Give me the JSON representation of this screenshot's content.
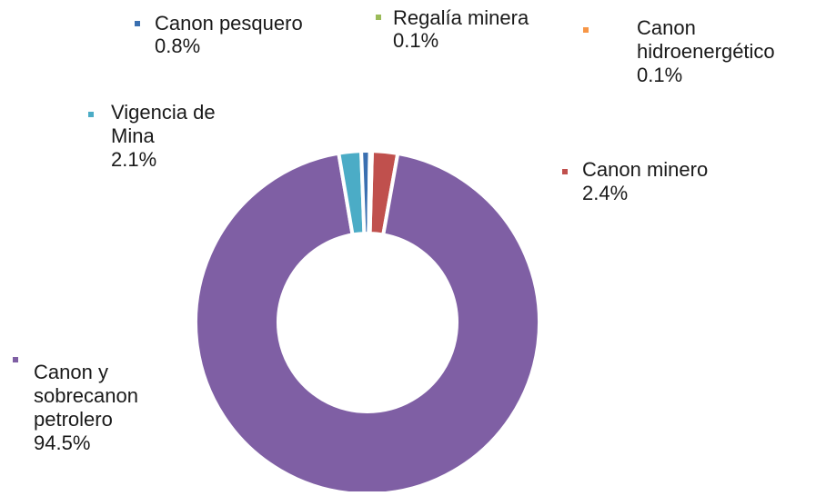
{
  "chart_data": {
    "type": "pie",
    "donut": true,
    "title": "",
    "slices": [
      {
        "label": "Canon minero",
        "value": 2.4,
        "display": "2.4%",
        "color": "#c0504d"
      },
      {
        "label": "Canon y sobrecanon petrolero",
        "value": 94.5,
        "display": "94.5%",
        "color": "#7f5fa4"
      },
      {
        "label": "Vigencia de Mina",
        "value": 2.1,
        "display": "2.1%",
        "color": "#4bacc6"
      },
      {
        "label": "Canon pesquero",
        "value": 0.8,
        "display": "0.8%",
        "color": "#3a6fb0"
      },
      {
        "label": "Regalía minera",
        "value": 0.1,
        "display": "0.1%",
        "color": "#9bbb59"
      },
      {
        "label": "Canon hidroenergético",
        "value": 0.1,
        "display": "0.1%",
        "color": "#f79646"
      }
    ]
  }
}
